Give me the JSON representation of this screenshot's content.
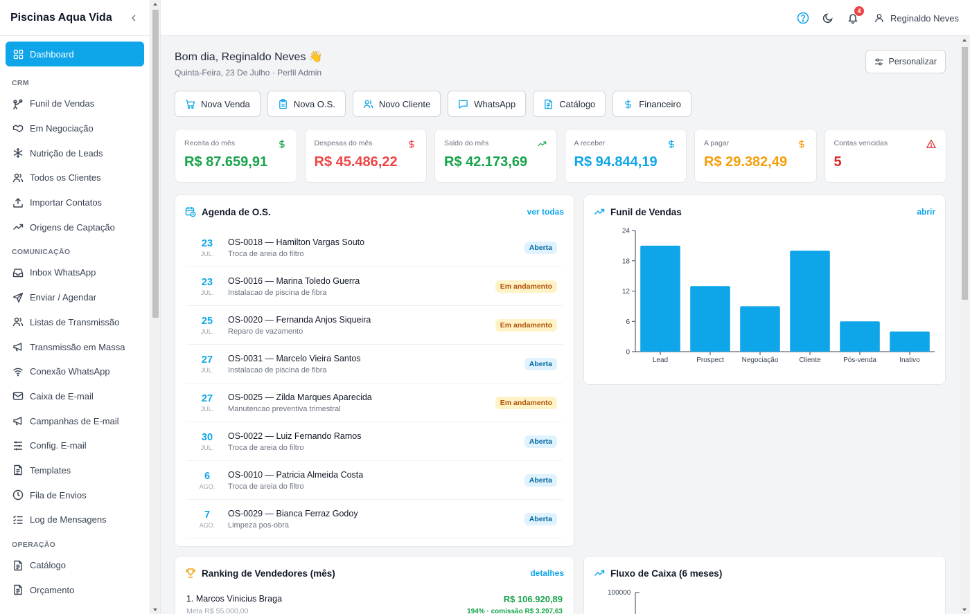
{
  "sidebar": {
    "brand": "Piscinas Aqua Vida",
    "active": "Dashboard",
    "sections": [
      {
        "title": "CRM",
        "items": [
          {
            "label": "Funil de Vendas",
            "icon": "funnel-icon"
          },
          {
            "label": "Em Negociação",
            "icon": "handshake-icon"
          },
          {
            "label": "Nutrição de Leads",
            "icon": "snowflake-icon"
          },
          {
            "label": "Todos os Clientes",
            "icon": "users-icon"
          },
          {
            "label": "Importar Contatos",
            "icon": "upload-icon"
          },
          {
            "label": "Origens de Captação",
            "icon": "trending-icon"
          }
        ]
      },
      {
        "title": "COMUNICAÇÃO",
        "items": [
          {
            "label": "Inbox WhatsApp",
            "icon": "inbox-icon"
          },
          {
            "label": "Enviar / Agendar",
            "icon": "send-icon"
          },
          {
            "label": "Listas de Transmissão",
            "icon": "users-icon"
          },
          {
            "label": "Transmissão em Massa",
            "icon": "megaphone-icon"
          },
          {
            "label": "Conexão WhatsApp",
            "icon": "wifi-icon"
          },
          {
            "label": "Caixa de E-mail",
            "icon": "mail-icon"
          },
          {
            "label": "Campanhas de E-mail",
            "icon": "megaphone-icon"
          },
          {
            "label": "Config. E-mail",
            "icon": "sliders-icon"
          },
          {
            "label": "Templates",
            "icon": "file-icon"
          },
          {
            "label": "Fila de Envios",
            "icon": "clock-icon"
          },
          {
            "label": "Log de Mensagens",
            "icon": "list-check-icon"
          }
        ]
      },
      {
        "title": "OPERAÇÃO",
        "items": [
          {
            "label": "Catálogo",
            "icon": "file-icon"
          },
          {
            "label": "Orçamento",
            "icon": "file-icon"
          }
        ]
      }
    ]
  },
  "topbar": {
    "user_name": "Reginaldo Neves",
    "notification_count": "4"
  },
  "header": {
    "greeting": "Bom dia, Reginaldo Neves 👋",
    "subtitle": "Quinta-Feira, 23 De Julho · Perfil Admin",
    "personalize": "Personalizar"
  },
  "quick_actions": [
    {
      "label": "Nova Venda",
      "icon": "cart-icon"
    },
    {
      "label": "Nova O.S.",
      "icon": "clipboard-icon"
    },
    {
      "label": "Novo Cliente",
      "icon": "users-icon"
    },
    {
      "label": "WhatsApp",
      "icon": "chat-icon"
    },
    {
      "label": "Catálogo",
      "icon": "file-icon"
    },
    {
      "label": "Financeiro",
      "icon": "dollar-icon"
    }
  ],
  "kpis": [
    {
      "label": "Receita do mês",
      "value": "R$ 87.659,91",
      "color": "#16a34a",
      "icon": "dollar-icon"
    },
    {
      "label": "Despesas do mês",
      "value": "R$ 45.486,22",
      "color": "#ef4444",
      "icon": "dollar-icon"
    },
    {
      "label": "Saldo do mês",
      "value": "R$ 42.173,69",
      "color": "#16a34a",
      "icon": "trending-icon"
    },
    {
      "label": "A receber",
      "value": "R$ 94.844,19",
      "color": "#0ea5e9",
      "icon": "dollar-icon"
    },
    {
      "label": "A pagar",
      "value": "R$ 29.382,49",
      "color": "#f59e0b",
      "icon": "dollar-icon"
    },
    {
      "label": "Contas vencidas",
      "value": "5",
      "color": "#dc2626",
      "icon": "alert-icon"
    }
  ],
  "agenda": {
    "title": "Agenda de O.S.",
    "link": "ver todas",
    "rows": [
      {
        "day": "23",
        "month": "JUL.",
        "title": "OS-0018 — Hamilton Vargas Souto",
        "sub": "Troca de areia do filtro",
        "status": "Aberta",
        "kind": "open"
      },
      {
        "day": "23",
        "month": "JUL.",
        "title": "OS-0016 — Marina Toledo Guerra",
        "sub": "Instalacao de piscina de fibra",
        "status": "Em andamento",
        "kind": "prog"
      },
      {
        "day": "25",
        "month": "JUL.",
        "title": "OS-0020 — Fernanda Anjos Siqueira",
        "sub": "Reparo de vazamento",
        "status": "Em andamento",
        "kind": "prog"
      },
      {
        "day": "27",
        "month": "JUL.",
        "title": "OS-0031 — Marcelo Vieira Santos",
        "sub": "Instalacao de piscina de fibra",
        "status": "Aberta",
        "kind": "open"
      },
      {
        "day": "27",
        "month": "JUL.",
        "title": "OS-0025 — Zilda Marques Aparecida",
        "sub": "Manutencao preventiva trimestral",
        "status": "Em andamento",
        "kind": "prog"
      },
      {
        "day": "30",
        "month": "JUL.",
        "title": "OS-0022 — Luiz Fernando Ramos",
        "sub": "Troca de areia do filtro",
        "status": "Aberta",
        "kind": "open"
      },
      {
        "day": "6",
        "month": "AGO.",
        "title": "OS-0010 — Patricia Almeida Costa",
        "sub": "Troca de areia do filtro",
        "status": "Aberta",
        "kind": "open"
      },
      {
        "day": "7",
        "month": "AGO.",
        "title": "OS-0029 — Bianca Ferraz Godoy",
        "sub": "Limpeza pos-obra",
        "status": "Aberta",
        "kind": "open"
      }
    ]
  },
  "funnel": {
    "title": "Funil de Vendas",
    "link": "abrir"
  },
  "ranking": {
    "title": "Ranking de Vendedores (mês)",
    "link": "detalhes",
    "rows": [
      {
        "name": "1. Marcos Vinicius Braga",
        "meta": "Meta R$ 55.000,00",
        "value": "R$ 106.920,89",
        "commission": "194% · comissão R$ 3.207,63"
      }
    ]
  },
  "cashflow": {
    "title": "Fluxo de Caixa (6 meses)",
    "y_top_label": "100000"
  },
  "chart_data": {
    "type": "bar",
    "categories": [
      "Lead",
      "Prospect",
      "Negociação",
      "Cliente",
      "Pós-venda",
      "Inativo"
    ],
    "values": [
      21,
      13,
      9,
      20,
      6,
      4
    ],
    "ylim": [
      0,
      24
    ],
    "yticks": [
      0,
      6,
      12,
      18,
      24
    ],
    "color": "#0ea5e9",
    "grid": false
  }
}
